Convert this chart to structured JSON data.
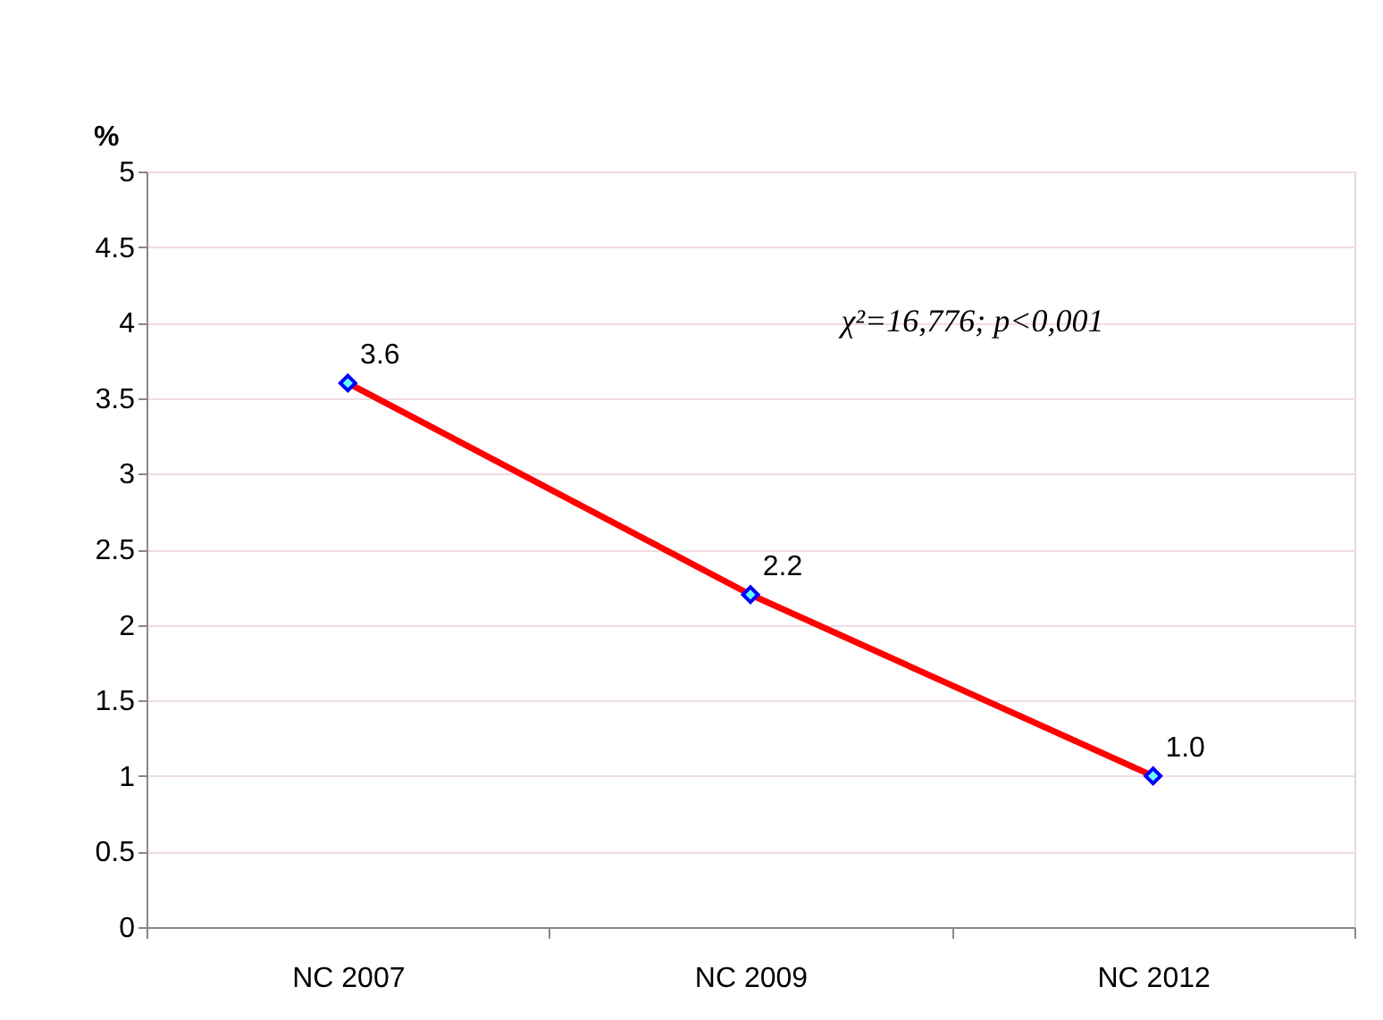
{
  "chart_data": {
    "type": "line",
    "ylabel": "%",
    "categories": [
      "NC 2007",
      "NC 2009",
      "NC 2012"
    ],
    "series": [
      {
        "color": "#ff0000",
        "values": [
          3.6,
          2.2,
          1.0
        ],
        "value_labels": [
          "3.6",
          "2.2",
          "1.0"
        ]
      }
    ],
    "ylim": [
      0,
      5
    ],
    "yticks": [
      0,
      0.5,
      1,
      1.5,
      2,
      2.5,
      3,
      3.5,
      4,
      4.5,
      5
    ],
    "grid": "y",
    "marker": "diamond",
    "line_style": "solid",
    "annotations": [
      "χ²=16,776;  p<0,001"
    ]
  }
}
